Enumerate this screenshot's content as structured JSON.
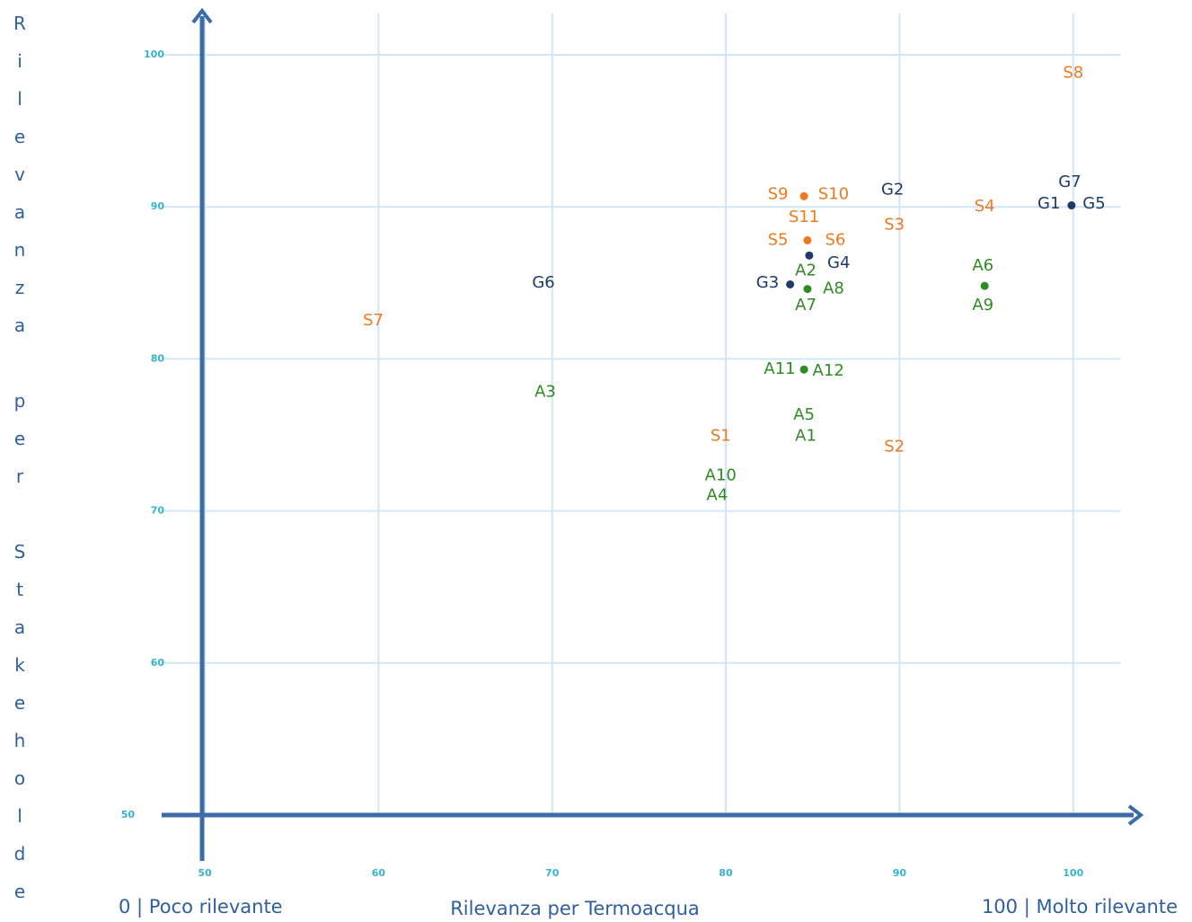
{
  "chart_data": {
    "type": "scatter",
    "x_label": "Rilevanza per Termoacqua",
    "y_label": "Rilevanza per Stakeholder",
    "x_low_label": "0 | Poco rilevante",
    "x_high_label": "100 | Molto rilevante",
    "xlim": [
      50,
      102.7
    ],
    "ylim": [
      50,
      100
    ],
    "xticks": [
      50,
      60,
      70,
      80,
      90,
      100
    ],
    "yticks": [
      50,
      60,
      70,
      80,
      90,
      100
    ],
    "grid": true,
    "series": [
      {
        "color": "#f07820",
        "points": [
          {
            "label": "S8",
            "x": 100,
            "y": 98.8
          },
          {
            "label": "S9",
            "x": 83.0,
            "y": 90.8
          },
          {
            "label": "S10",
            "x": 86.2,
            "y": 90.8
          },
          {
            "label": "S11",
            "x": 84.5,
            "y": 89.3
          },
          {
            "label": "S3",
            "x": 89.7,
            "y": 88.8
          },
          {
            "label": "S4",
            "x": 94.9,
            "y": 90.0
          },
          {
            "label": "S5",
            "x": 83.0,
            "y": 87.8
          },
          {
            "label": "S6",
            "x": 86.3,
            "y": 87.8
          },
          {
            "label": "S7",
            "x": 59.7,
            "y": 82.5
          },
          {
            "label": "S1",
            "x": 79.7,
            "y": 74.9
          },
          {
            "label": "S2",
            "x": 89.7,
            "y": 74.2
          }
        ],
        "dots": {
          "x": [
            84.5,
            84.7
          ],
          "y": [
            90.7,
            87.8
          ]
        }
      },
      {
        "color": "#1f3a68",
        "points": [
          {
            "label": "G2",
            "x": 89.6,
            "y": 91.1
          },
          {
            "label": "G7",
            "x": 99.8,
            "y": 91.6
          },
          {
            "label": "G1",
            "x": 98.6,
            "y": 90.2
          },
          {
            "label": "G5",
            "x": 101.2,
            "y": 90.2
          },
          {
            "label": "G4",
            "x": 86.5,
            "y": 86.3
          },
          {
            "label": "G3",
            "x": 82.4,
            "y": 85.0
          },
          {
            "label": "G6",
            "x": 69.5,
            "y": 85.0
          }
        ],
        "dots": {
          "x": [
            99.9,
            84.8,
            83.7
          ],
          "y": [
            90.1,
            86.8,
            84.9
          ]
        }
      },
      {
        "color": "#2e8b22",
        "points": [
          {
            "label": "A2",
            "x": 84.6,
            "y": 85.8
          },
          {
            "label": "A8",
            "x": 86.2,
            "y": 84.6
          },
          {
            "label": "A7",
            "x": 84.6,
            "y": 83.5
          },
          {
            "label": "A6",
            "x": 94.8,
            "y": 86.1
          },
          {
            "label": "A9",
            "x": 94.8,
            "y": 83.5
          },
          {
            "label": "A11",
            "x": 83.1,
            "y": 79.3
          },
          {
            "label": "A12",
            "x": 85.9,
            "y": 79.2
          },
          {
            "label": "A3",
            "x": 69.6,
            "y": 77.8
          },
          {
            "label": "A5",
            "x": 84.5,
            "y": 76.3
          },
          {
            "label": "A1",
            "x": 84.6,
            "y": 74.9
          },
          {
            "label": "A10",
            "x": 79.7,
            "y": 72.3
          },
          {
            "label": "A4",
            "x": 79.5,
            "y": 71.0
          }
        ],
        "dots": {
          "x": [
            84.7,
            84.5,
            94.9
          ],
          "y": [
            84.6,
            79.3,
            84.8
          ]
        }
      }
    ]
  }
}
